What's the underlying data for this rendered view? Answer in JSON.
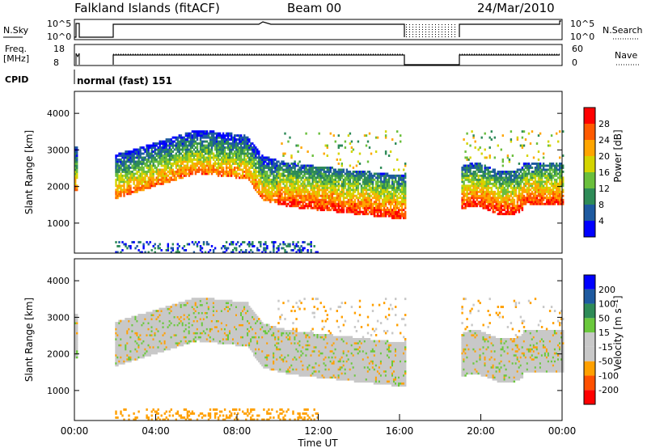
{
  "header": {
    "title": "Falkland Islands (fitACF)",
    "beam": "Beam 00",
    "date": "24/Mar/2010"
  },
  "status_panels": {
    "nsky_label": "N.Sky",
    "nsearch_label": "N.Search",
    "nsky_ticks": [
      "10^5",
      "10^0"
    ],
    "freq_label": "Freq.",
    "freq_unit": "[MHz]",
    "freq_ticks": [
      "18",
      "8"
    ],
    "nave_label": "Nave",
    "nave_ticks": [
      "60",
      "0"
    ],
    "cpid_label": "CPID",
    "cpid_value": "normal (fast) 151"
  },
  "chart_data": [
    {
      "type": "heatmap",
      "name": "power",
      "xlabel": "",
      "ylabel": "Slant Range [km]",
      "xlim": [
        0,
        24
      ],
      "ylim": [
        180,
        4600
      ],
      "yticks": [
        "4000",
        "3000",
        "2000",
        "1000"
      ],
      "colorbar_label": "Power [dB]",
      "colorbar_ticks": [
        "28",
        "24",
        "20",
        "16",
        "12",
        "8",
        "4"
      ],
      "colormap": [
        "#0000ff",
        "#1e5aa0",
        "#2e8b57",
        "#6abf3c",
        "#d4d400",
        "#ffa500",
        "#ff5a00",
        "#ff0000"
      ],
      "data_gaps_hours": [
        [
          0.15,
          1.95
        ],
        [
          16.3,
          19.0
        ]
      ]
    },
    {
      "type": "heatmap",
      "name": "velocity",
      "xlabel": "Time UT",
      "ylabel": "Slant Range [km]",
      "xlim": [
        0,
        24
      ],
      "ylim": [
        180,
        4600
      ],
      "yticks": [
        "4000",
        "3000",
        "2000",
        "1000"
      ],
      "xticks": [
        "00:00",
        "04:00",
        "08:00",
        "12:00",
        "16:00",
        "20:00",
        "00:00"
      ],
      "colorbar_label": "Velocity [m s⁻¹]",
      "colorbar_ticks": [
        "200",
        "100",
        "50",
        "15",
        "-15",
        "-50",
        "-100",
        "-200"
      ],
      "colormap": [
        "#ff0000",
        "#ff5000",
        "#ffa000",
        "#c8c8c8",
        "#c8c8c8",
        "#6ac83c",
        "#2e8b57",
        "#1e5aa0",
        "#0000ff"
      ],
      "data_gaps_hours": [
        [
          0.15,
          1.95
        ],
        [
          16.3,
          19.0
        ]
      ]
    }
  ]
}
